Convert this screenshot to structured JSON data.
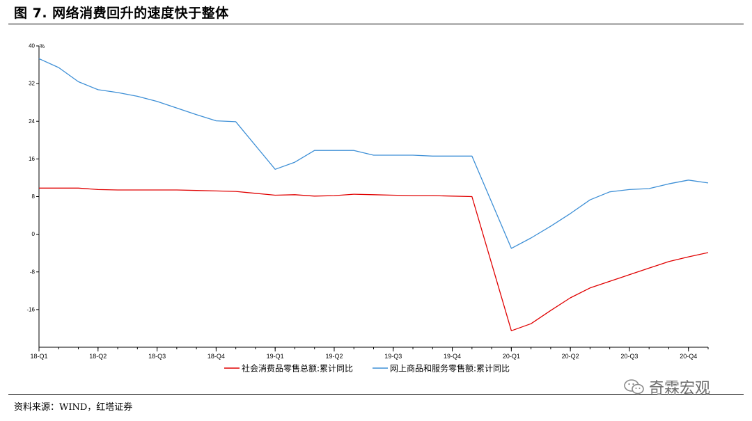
{
  "title": "图 7. 网络消费回升的速度快于整体",
  "source_note": "资料来源：WIND，红塔证券",
  "watermark": "奇霖宏观",
  "colors": {
    "series1": "#e00000",
    "series2": "#3d8fd6",
    "axis": "#000000"
  },
  "chart_data": {
    "type": "line",
    "y_unit_label": "%",
    "ylim": [
      -24,
      40
    ],
    "y_ticks": [
      40,
      32,
      24,
      16,
      8,
      0,
      -8,
      -16
    ],
    "x_tick_labels": [
      "18-Q1",
      "18-Q2",
      "18-Q3",
      "18-Q4",
      "19-Q1",
      "19-Q2",
      "19-Q3",
      "19-Q4",
      "20-Q1",
      "20-Q2",
      "20-Q3",
      "20-Q4"
    ],
    "x_range": [
      0,
      34
    ],
    "x_tick_positions": [
      0,
      3,
      6,
      9,
      12,
      15,
      18,
      21,
      24,
      27,
      30,
      33
    ],
    "grid": false,
    "legend_position": "bottom",
    "series": [
      {
        "name": "社会消费品零售总额:累计同比",
        "color": "#e00000",
        "points": [
          [
            0,
            9.8
          ],
          [
            1,
            9.8
          ],
          [
            2,
            9.8
          ],
          [
            3,
            9.5
          ],
          [
            4,
            9.4
          ],
          [
            5,
            9.4
          ],
          [
            6,
            9.4
          ],
          [
            7,
            9.4
          ],
          [
            8,
            9.3
          ],
          [
            9,
            9.2
          ],
          [
            10,
            9.1
          ],
          [
            11,
            8.7
          ],
          [
            12,
            8.3
          ],
          [
            13,
            8.4
          ],
          [
            14,
            8.1
          ],
          [
            15,
            8.2
          ],
          [
            16,
            8.5
          ],
          [
            17,
            8.4
          ],
          [
            18,
            8.3
          ],
          [
            19,
            8.2
          ],
          [
            20,
            8.2
          ],
          [
            21,
            8.1
          ],
          [
            22,
            8.0
          ],
          [
            24,
            -20.5
          ],
          [
            25,
            -19.0
          ],
          [
            26,
            -16.2
          ],
          [
            27,
            -13.5
          ],
          [
            28,
            -11.4
          ],
          [
            29,
            -10.0
          ],
          [
            30,
            -8.6
          ],
          [
            31,
            -7.2
          ],
          [
            32,
            -5.8
          ],
          [
            33,
            -4.8
          ],
          [
            34,
            -3.9
          ]
        ]
      },
      {
        "name": "网上商品和服务零售额:累计同比",
        "color": "#3d8fd6",
        "points": [
          [
            0,
            37.3
          ],
          [
            1,
            35.4
          ],
          [
            2,
            32.4
          ],
          [
            3,
            30.7
          ],
          [
            4,
            30.1
          ],
          [
            5,
            29.3
          ],
          [
            6,
            28.2
          ],
          [
            7,
            26.8
          ],
          [
            8,
            25.4
          ],
          [
            9,
            24.1
          ],
          [
            10,
            23.9
          ],
          [
            12,
            13.8
          ],
          [
            13,
            15.3
          ],
          [
            14,
            17.8
          ],
          [
            15,
            17.8
          ],
          [
            16,
            17.8
          ],
          [
            17,
            16.8
          ],
          [
            18,
            16.8
          ],
          [
            19,
            16.8
          ],
          [
            20,
            16.6
          ],
          [
            21,
            16.6
          ],
          [
            22,
            16.6
          ],
          [
            24,
            -3.0
          ],
          [
            25,
            -0.8
          ],
          [
            26,
            1.7
          ],
          [
            27,
            4.4
          ],
          [
            28,
            7.3
          ],
          [
            29,
            9.0
          ],
          [
            30,
            9.5
          ],
          [
            31,
            9.7
          ],
          [
            32,
            10.7
          ],
          [
            33,
            11.5
          ],
          [
            34,
            10.9
          ]
        ]
      }
    ]
  }
}
